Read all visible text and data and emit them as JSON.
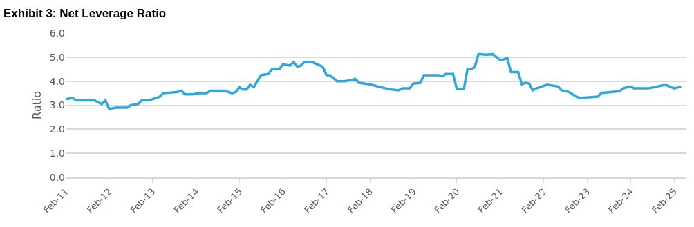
{
  "chart_data": {
    "type": "line",
    "title": "Exhibit 3: Net Leverage Ratio",
    "ylabel": "Ratio",
    "x": [
      "2011-02",
      "2011-04",
      "2011-05",
      "2011-10",
      "2011-12",
      "2012-01",
      "2012-02",
      "2012-04",
      "2012-07",
      "2012-08",
      "2012-10",
      "2012-11",
      "2013-01",
      "2013-04",
      "2013-05",
      "2013-09",
      "2013-10",
      "2013-11",
      "2014-01",
      "2014-03",
      "2014-05",
      "2014-06",
      "2014-10",
      "2014-12",
      "2015-01",
      "2015-02",
      "2015-03",
      "2015-04",
      "2015-05",
      "2015-06",
      "2015-07",
      "2015-08",
      "2015-10",
      "2015-11",
      "2016-01",
      "2016-02",
      "2016-04",
      "2016-05",
      "2016-06",
      "2016-07",
      "2016-08",
      "2016-10",
      "2017-01",
      "2017-02",
      "2017-03",
      "2017-05",
      "2017-07",
      "2017-09",
      "2017-10",
      "2017-11",
      "2018-02",
      "2018-05",
      "2018-08",
      "2018-10",
      "2018-11",
      "2019-01",
      "2019-02",
      "2019-04",
      "2019-05",
      "2019-09",
      "2019-10",
      "2019-11",
      "2020-01",
      "2020-02",
      "2020-04",
      "2020-05",
      "2020-06",
      "2020-07",
      "2020-08",
      "2020-10",
      "2020-12",
      "2021-02",
      "2021-04",
      "2021-05",
      "2021-07",
      "2021-08",
      "2021-09",
      "2021-10",
      "2021-11",
      "2021-12",
      "2022-03",
      "2022-06",
      "2022-07",
      "2022-09",
      "2022-11",
      "2022-12",
      "2023-05",
      "2023-06",
      "2023-11",
      "2023-12",
      "2024-02",
      "2024-03",
      "2024-07",
      "2024-11",
      "2024-12",
      "2025-02",
      "2025-04"
    ],
    "series": [
      {
        "color": "#2ea7dc",
        "values": [
          3.25,
          3.3,
          3.2,
          3.2,
          3.05,
          3.2,
          2.85,
          2.9,
          2.9,
          3.0,
          3.05,
          3.2,
          3.2,
          3.35,
          3.5,
          3.55,
          3.6,
          3.45,
          3.45,
          3.5,
          3.5,
          3.6,
          3.6,
          3.5,
          3.55,
          3.75,
          3.65,
          3.65,
          3.85,
          3.75,
          4.0,
          4.25,
          4.3,
          4.5,
          4.5,
          4.7,
          4.65,
          4.8,
          4.6,
          4.65,
          4.8,
          4.8,
          4.6,
          4.25,
          4.25,
          4.0,
          4.0,
          4.05,
          4.1,
          3.93,
          3.87,
          3.75,
          3.65,
          3.62,
          3.7,
          3.7,
          3.9,
          3.93,
          4.25,
          4.25,
          4.2,
          4.3,
          4.3,
          3.68,
          3.68,
          4.5,
          4.5,
          4.58,
          5.13,
          5.1,
          5.12,
          4.87,
          4.96,
          4.38,
          4.38,
          3.87,
          3.93,
          3.9,
          3.62,
          3.7,
          3.85,
          3.78,
          3.62,
          3.55,
          3.36,
          3.3,
          3.36,
          3.51,
          3.58,
          3.7,
          3.78,
          3.7,
          3.7,
          3.83,
          3.83,
          3.7,
          3.78
        ]
      }
    ],
    "xlim": [
      "2011-02-01",
      "2025-05-15"
    ],
    "xticks": [
      {
        "value": "2011-02-01",
        "label": "Feb-11"
      },
      {
        "value": "2012-02-01",
        "label": "Feb-12"
      },
      {
        "value": "2013-02-01",
        "label": "Feb-13"
      },
      {
        "value": "2014-02-01",
        "label": "Feb-14"
      },
      {
        "value": "2015-02-01",
        "label": "Feb-15"
      },
      {
        "value": "2016-02-01",
        "label": "Feb-16"
      },
      {
        "value": "2017-02-01",
        "label": "Feb-17"
      },
      {
        "value": "2018-02-01",
        "label": "Feb-18"
      },
      {
        "value": "2019-02-01",
        "label": "Feb-19"
      },
      {
        "value": "2020-02-01",
        "label": "Feb-20"
      },
      {
        "value": "2021-02-01",
        "label": "Feb-21"
      },
      {
        "value": "2022-02-01",
        "label": "Feb-22"
      },
      {
        "value": "2023-02-01",
        "label": "Feb-23"
      },
      {
        "value": "2024-02-01",
        "label": "Feb-24"
      },
      {
        "value": "2025-02-01",
        "label": "Feb-25"
      }
    ],
    "ylim": [
      0,
      6
    ],
    "yticks": [
      {
        "value": 0,
        "label": "0.0"
      },
      {
        "value": 1,
        "label": "1.0"
      },
      {
        "value": 2,
        "label": "2.0"
      },
      {
        "value": 3,
        "label": "3.0"
      },
      {
        "value": 4,
        "label": "4.0"
      },
      {
        "value": 5,
        "label": "5.0"
      },
      {
        "value": 6,
        "label": "6.0"
      }
    ],
    "grid": "y",
    "marker": "none",
    "line_style": "solid"
  }
}
